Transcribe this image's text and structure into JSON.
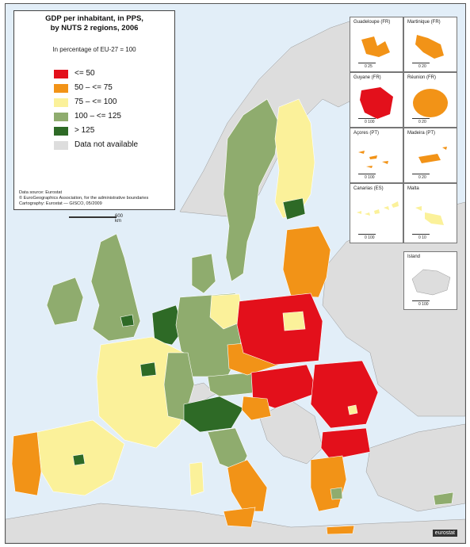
{
  "legend": {
    "title_line1": "GDP per inhabitant, in PPS,",
    "title_line2": "by NUTS 2 regions, 2006",
    "subtitle": "In percentage of EU-27 = 100",
    "classes": [
      {
        "label": "<= 50",
        "color": "#e3101b"
      },
      {
        "label": "50 – <= 75",
        "color": "#f29317"
      },
      {
        "label": "75 – <= 100",
        "color": "#fbf19a"
      },
      {
        "label": "100 – <= 125",
        "color": "#8fac6e"
      },
      {
        "label": "> 125",
        "color": "#2e6a26"
      },
      {
        "label": "Data not available",
        "color": "#dddddd"
      }
    ]
  },
  "source": {
    "line1": "Data source: Eurostat",
    "line2": "© EuroGeographics Association, for the administrative boundaries",
    "line3": "Cartography: Eurostat — GISCO, 05/2009"
  },
  "scale": {
    "main": "600 km"
  },
  "insets": [
    {
      "name": "Guadeloupe (FR)",
      "scale": "0 25"
    },
    {
      "name": "Martinique (FR)",
      "scale": "0 20"
    },
    {
      "name": "Guyane (FR)",
      "scale": "0 100"
    },
    {
      "name": "Réunion (FR)",
      "scale": "0 20"
    },
    {
      "name": "Açores (PT)",
      "scale": "0 100"
    },
    {
      "name": "Madeira (PT)",
      "scale": "0 20"
    },
    {
      "name": "Canarias (ES)",
      "scale": "0 100"
    },
    {
      "name": "Malta",
      "scale": "0 10"
    },
    {
      "name": "Island",
      "scale": "0 100"
    }
  ],
  "logo": "eurostat",
  "colors": {
    "sea": "#e2eef8",
    "non_eu_land": "#dddddd",
    "red": "#e3101b",
    "orange": "#f29317",
    "yellow": "#fbf19a",
    "lightgreen": "#8fac6e",
    "darkgreen": "#2e6a26"
  }
}
